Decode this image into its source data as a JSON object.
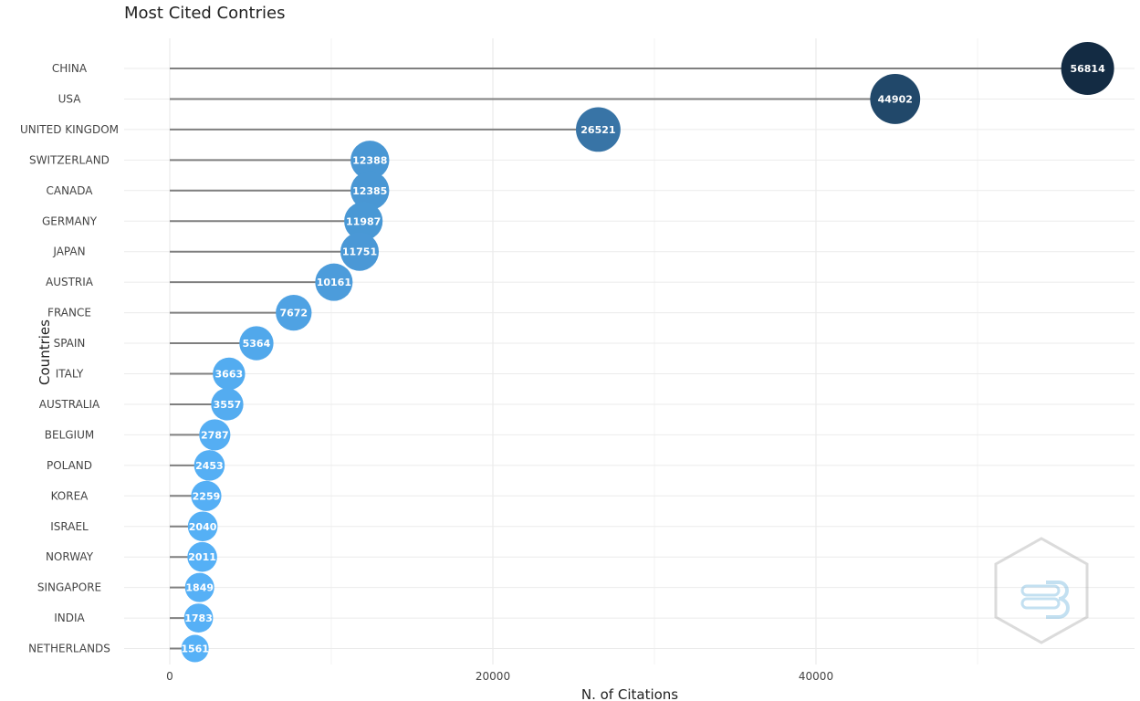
{
  "chart_data": {
    "type": "lollipop",
    "title": "Most Cited Contries",
    "xlabel": "N. of Citations",
    "ylabel": "Countries",
    "xlim": [
      -3000,
      60000
    ],
    "x_ticks": [
      0,
      20000,
      40000
    ],
    "grid": true,
    "categories": [
      "CHINA",
      "USA",
      "UNITED KINGDOM",
      "SWITZERLAND",
      "CANADA",
      "GERMANY",
      "JAPAN",
      "AUSTRIA",
      "FRANCE",
      "SPAIN",
      "ITALY",
      "AUSTRALIA",
      "BELGIUM",
      "POLAND",
      "KOREA",
      "ISRAEL",
      "NORWAY",
      "SINGAPORE",
      "INDIA",
      "NETHERLANDS"
    ],
    "values": [
      56814,
      44902,
      26521,
      12388,
      12385,
      11987,
      11751,
      10161,
      7672,
      5364,
      3663,
      3557,
      2787,
      2453,
      2259,
      2040,
      2011,
      1849,
      1783,
      1561
    ],
    "colors": {
      "low": "#56b1f7",
      "high": "#132b43",
      "stem": "#7f7f7f",
      "grid": "#ebebeb"
    }
  }
}
